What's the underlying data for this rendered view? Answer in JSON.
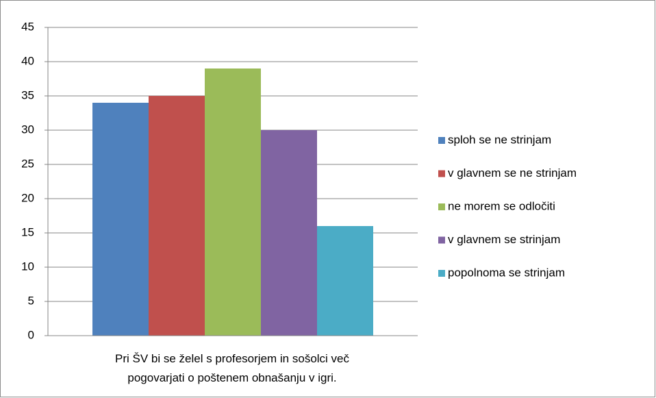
{
  "chart_data": {
    "type": "bar",
    "categories": [
      "Pri ŠV bi se želel s profesorjem in sošolci več pogovarjati o poštenem obnašanju v igri."
    ],
    "series": [
      {
        "name": "sploh se ne strinjam",
        "color": "#4f81bd",
        "values": [
          34
        ]
      },
      {
        "name": "v glavnem se ne strinjam",
        "color": "#c0504d",
        "values": [
          35
        ]
      },
      {
        "name": "ne morem se odločiti",
        "color": "#9bbb59",
        "values": [
          39
        ]
      },
      {
        "name": "v glavnem se strinjam",
        "color": "#8064a2",
        "values": [
          30
        ]
      },
      {
        "name": "popolnoma se strinjam",
        "color": "#4bacc6",
        "values": [
          16
        ]
      }
    ],
    "ylim": [
      0,
      45
    ],
    "yticks": [
      0,
      5,
      10,
      15,
      20,
      25,
      30,
      35,
      40,
      45
    ],
    "grid": true,
    "legend": "right"
  }
}
